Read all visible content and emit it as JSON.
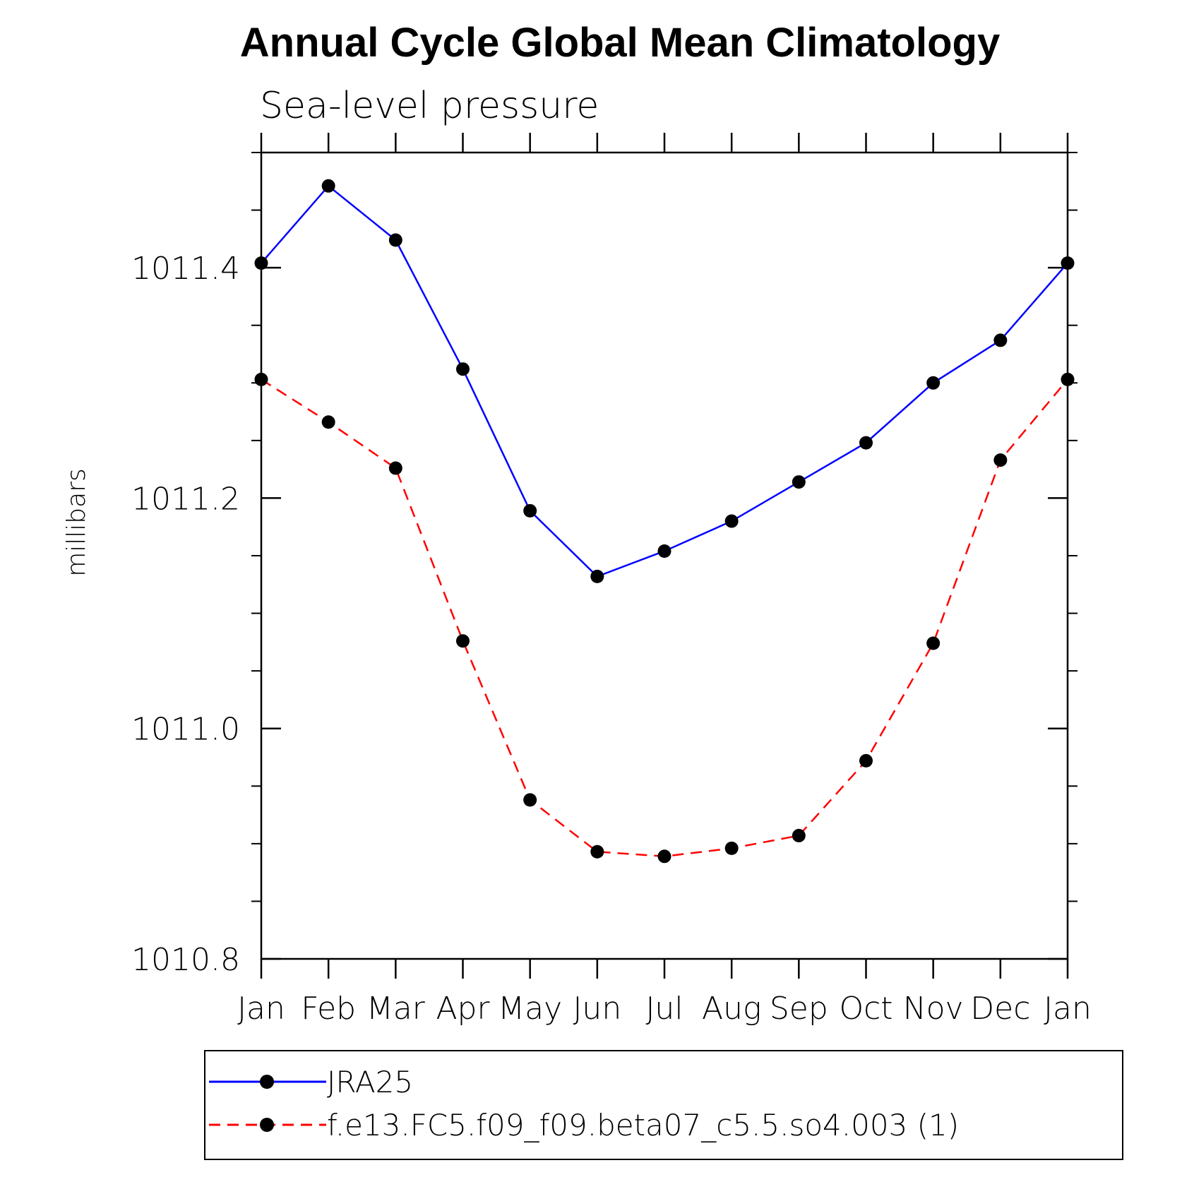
{
  "chart_data": {
    "type": "line",
    "title": "Annual Cycle Global Mean Climatology",
    "subtitle": "Sea-level pressure",
    "xlabel": "",
    "ylabel": "millibars",
    "categories": [
      "Jan",
      "Feb",
      "Mar",
      "Apr",
      "May",
      "Jun",
      "Jul",
      "Aug",
      "Sep",
      "Oct",
      "Nov",
      "Dec",
      "Jan"
    ],
    "yticks": [
      "1010.8",
      "1011.0",
      "1011.2",
      "1011.4"
    ],
    "ylim": [
      1010.8,
      1011.5
    ],
    "grid": false,
    "legend_position": "bottom",
    "series": [
      {
        "name": "JRA25",
        "color": "#0000ff",
        "dash": "solid",
        "marker": "filled-circle",
        "values": [
          1011.404,
          1011.471,
          1011.424,
          1011.312,
          1011.189,
          1011.132,
          1011.154,
          1011.18,
          1011.214,
          1011.248,
          1011.3,
          1011.337,
          1011.404
        ]
      },
      {
        "name": "f.e13.FC5.f09_f09.beta07_c5.5.so4.003 (1)",
        "color": "#ff0000",
        "dash": "dashed",
        "marker": "filled-circle",
        "values": [
          1011.303,
          1011.266,
          1011.226,
          1011.076,
          1010.938,
          1010.893,
          1010.889,
          1010.896,
          1010.907,
          1010.972,
          1011.074,
          1011.233,
          1011.303
        ]
      }
    ]
  }
}
